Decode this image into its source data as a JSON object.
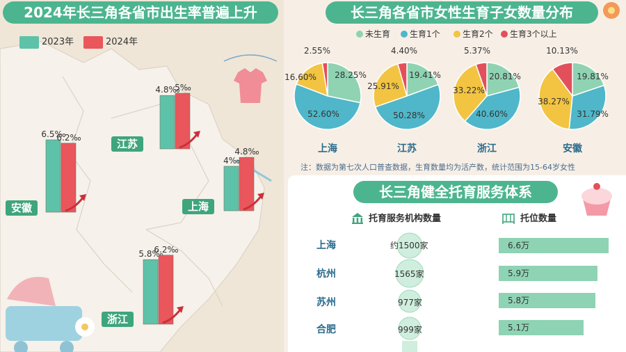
{
  "left_panel": {
    "title": "2024年长三角各省市出生率普遍上升",
    "legend": [
      {
        "label": "2023年",
        "color": "#5ec2a8"
      },
      {
        "label": "2024年",
        "color": "#e9565b"
      }
    ]
  },
  "right_panel": {
    "title": "长三角各省市女性生育子女数量分布",
    "legend": [
      {
        "label": "未生育",
        "color": "#8fd3b3"
      },
      {
        "label": "生育1个",
        "color": "#4fb7c9"
      },
      {
        "label": "生育2个",
        "color": "#f2c441"
      },
      {
        "label": "生育3个以上",
        "color": "#e2505c"
      }
    ],
    "note": "注：数据为第七次人口普查数据，生育数量均为活产数，统计范围为15-64岁女性"
  },
  "childcare": {
    "title": "长三角健全托育服务体系",
    "col_orgs": "托育服务机构数量",
    "col_beds": "托位数量",
    "rows": [
      {
        "city": "上海",
        "orgs": "约1500家",
        "beds": "6.6万",
        "beds_value": 6.6
      },
      {
        "city": "杭州",
        "orgs": "1565家",
        "beds": "5.9万",
        "beds_value": 5.9
      },
      {
        "city": "苏州",
        "orgs": "977家",
        "beds": "5.8万",
        "beds_value": 5.8
      },
      {
        "city": "合肥",
        "orgs": "999家",
        "beds": "5.1万",
        "beds_value": 5.1
      }
    ]
  },
  "chart_data": [
    {
      "type": "bar",
      "title": "2024年长三角各省市出生率普遍上升",
      "categories": [
        "江苏",
        "安徽",
        "上海",
        "浙江"
      ],
      "series": [
        {
          "name": "2023年",
          "values": [
            4.8,
            6.5,
            4.0,
            5.8
          ],
          "labels": [
            "4.8‰",
            "6.5‰",
            "4‰",
            "5.8‰"
          ]
        },
        {
          "name": "2024年",
          "values": [
            5.0,
            6.2,
            4.8,
            6.2
          ],
          "labels": [
            "5‰",
            "6.2‰",
            "4.8‰",
            "6.2‰"
          ]
        }
      ]
    },
    {
      "type": "pie",
      "title": "长三角各省市女性生育子女数量分布",
      "slice_names": [
        "未生育",
        "生育1个",
        "生育2个",
        "生育3个以上"
      ],
      "pies": [
        {
          "name": "上海",
          "values": [
            28.25,
            52.6,
            16.6,
            2.55
          ],
          "labels": [
            "28.25%",
            "52.60%",
            "16.60%",
            "2.55%"
          ]
        },
        {
          "name": "江苏",
          "values": [
            19.41,
            50.28,
            25.91,
            4.4
          ],
          "labels": [
            "19.41%",
            "50.28%",
            "25.91%",
            "4.40%"
          ]
        },
        {
          "name": "浙江",
          "values": [
            20.81,
            40.6,
            33.22,
            5.37
          ],
          "labels": [
            "20.81%",
            "40.60%",
            "33.22%",
            "5.37%"
          ]
        },
        {
          "name": "安徽",
          "values": [
            19.81,
            31.79,
            38.27,
            10.13
          ],
          "labels": [
            "19.81%",
            "31.79%",
            "38.27%",
            "10.13%"
          ]
        }
      ]
    }
  ]
}
